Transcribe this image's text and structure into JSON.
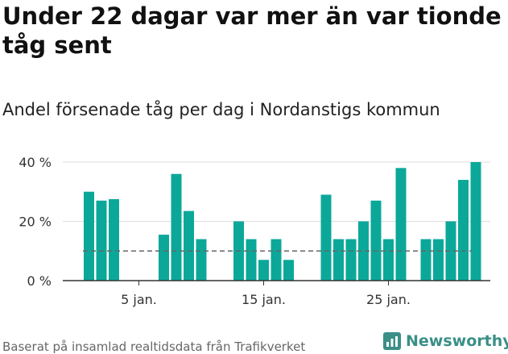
{
  "title": "Under 22 dagar var mer än var tionde tåg sent",
  "subtitle": "Andel försenade tåg per dag i Nordanstigs kommun",
  "footer": {
    "source": "Baserat på insamlad realtidsdata från Trafikverket",
    "brand": "Newsworthy"
  },
  "colors": {
    "bar": "#0ba89a",
    "reference_line": "#666666",
    "grid": "#dddddd",
    "brand": "#3a8f87"
  },
  "chart_data": {
    "type": "bar",
    "x_start_day": 1,
    "values": [
      30,
      27,
      27.5,
      0,
      0,
      0,
      15.5,
      36,
      23.5,
      14,
      0,
      0,
      20,
      14,
      7,
      14,
      7,
      0,
      0,
      29,
      14,
      14,
      20,
      27,
      14,
      38,
      0,
      14,
      14,
      20,
      34,
      40
    ],
    "y_ticks": [
      0,
      20,
      40
    ],
    "y_tick_labels": [
      "0 %",
      "20 %",
      "40 %"
    ],
    "ylim": [
      0,
      40
    ],
    "x_tick_days": [
      5,
      15,
      25
    ],
    "x_tick_labels": [
      "5 jan.",
      "15 jan.",
      "25 jan."
    ],
    "reference_value": 10,
    "grid": true
  }
}
